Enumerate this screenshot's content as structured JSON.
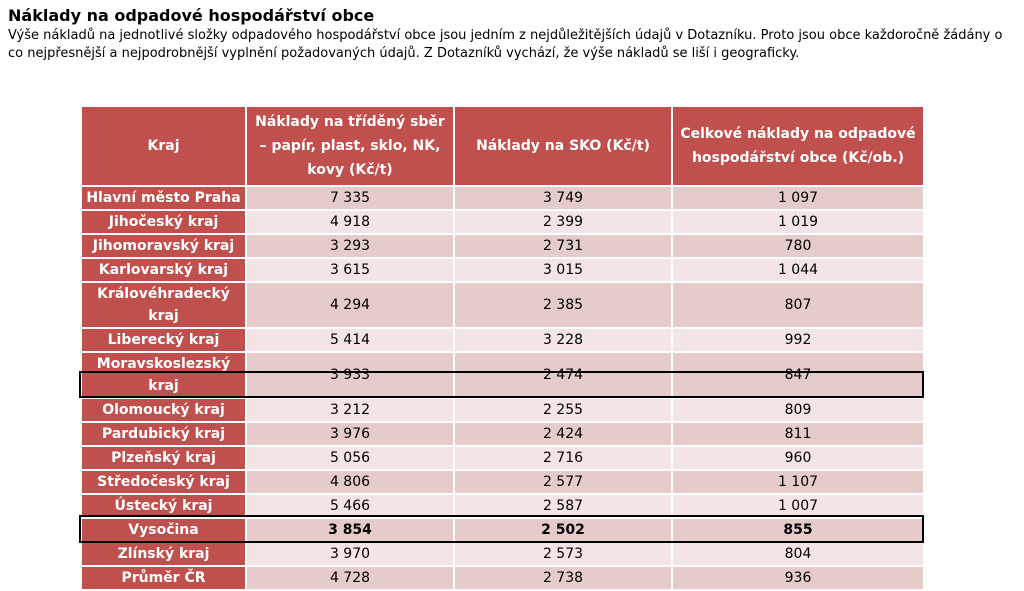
{
  "title": "Náklady na odpadové hospodářství obce",
  "intro": "Výše nákladů na jednotlivé složky odpadového hospodářství obce jsou jedním z nejdůležitějších údajů v Dotazníku. Proto jsou obce každoročně žádány o co nejpřesnější a nejpodrobnější vyplnění požadovaných údajů. Z Dotazníků vychází, že výše nákladů se liší i geograficky.",
  "table": {
    "headers": [
      "Kraj",
      "Náklady na tříděný sběr – papír, plast, sklo, NK, kovy (Kč/t)",
      "Náklady na SKO (Kč/t)",
      "Celkové náklady na odpadové hospodářství obce (Kč/ob.)"
    ],
    "rows": [
      {
        "kraj": "Hlavní město Praha",
        "trideny": "7 335",
        "sko": "3 749",
        "celkove": "1 097"
      },
      {
        "kraj": "Jihočeský kraj",
        "trideny": "4 918",
        "sko": "2 399",
        "celkove": "1 019"
      },
      {
        "kraj": "Jihomoravský kraj",
        "trideny": "3 293",
        "sko": "2 731",
        "celkove": "780"
      },
      {
        "kraj": "Karlovarský kraj",
        "trideny": "3 615",
        "sko": "3 015",
        "celkove": "1 044"
      },
      {
        "kraj": "Královéhradecký kraj",
        "trideny": "4 294",
        "sko": "2 385",
        "celkove": "807"
      },
      {
        "kraj": "Liberecký kraj",
        "trideny": "5 414",
        "sko": "3 228",
        "celkove": "992"
      },
      {
        "kraj": "Moravskoslezský kraj",
        "trideny": "3 933",
        "sko": "2 474",
        "celkove": "847"
      },
      {
        "kraj": "Olomoucký kraj",
        "trideny": "3 212",
        "sko": "2 255",
        "celkove": "809"
      },
      {
        "kraj": "Pardubický kraj",
        "trideny": "3 976",
        "sko": "2 424",
        "celkove": "811"
      },
      {
        "kraj": "Plzeňský kraj",
        "trideny": "5 056",
        "sko": "2 716",
        "celkove": "960"
      },
      {
        "kraj": "Středočeský kraj",
        "trideny": "4 806",
        "sko": "2 577",
        "celkove": "1 107"
      },
      {
        "kraj": "Ústecký kraj",
        "trideny": "5 466",
        "sko": "2 587",
        "celkove": "1 007"
      },
      {
        "kraj": "Vysočina",
        "trideny": "3 854",
        "sko": "2 502",
        "celkove": "855"
      },
      {
        "kraj": "Zlínský kraj",
        "trideny": "3 970",
        "sko": "2 573",
        "celkove": "804"
      },
      {
        "kraj": "Průměr ČR",
        "trideny": "4 728",
        "sko": "2 738",
        "celkove": "936"
      }
    ]
  },
  "colors": {
    "header_bg": "#c0504d",
    "row_odd": "#e6cbcb",
    "row_even": "#f3e5e5"
  }
}
